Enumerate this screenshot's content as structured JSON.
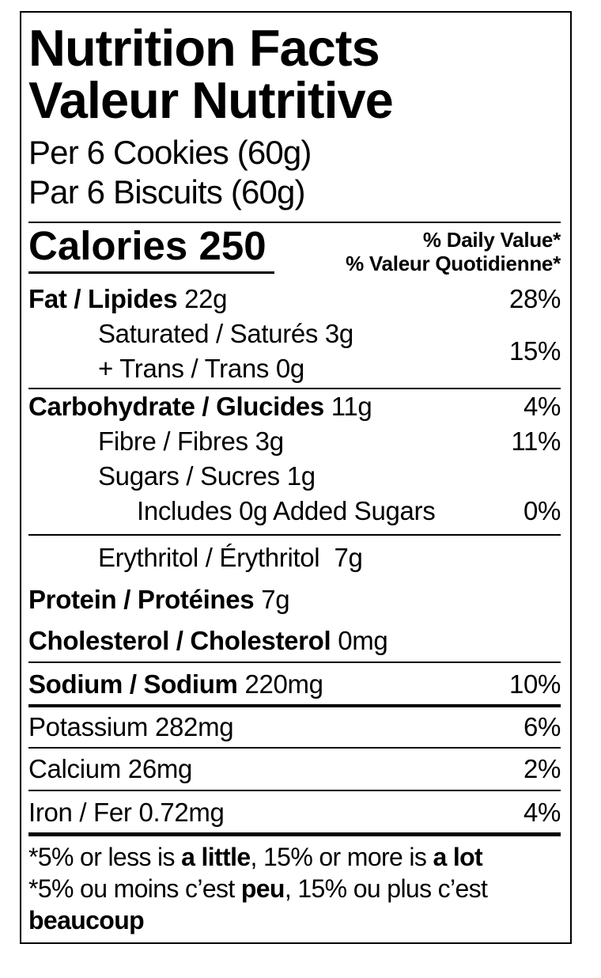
{
  "colors": {
    "text": "#000000",
    "background": "#ffffff",
    "border": "#000000"
  },
  "title": {
    "en": "Nutrition Facts",
    "fr": "Valeur Nutritive"
  },
  "serving": {
    "en": "Per 6 Cookies (60g)",
    "fr": "Par 6 Biscuits (60g)"
  },
  "calories": {
    "label": "Calories",
    "value": "250"
  },
  "dv_header": {
    "en": "% Daily Value*",
    "fr": "% Valeur Quotidienne*"
  },
  "nutrients": {
    "fat": {
      "name": "Fat / Lipides",
      "amount": "22g",
      "dv": "28%"
    },
    "sat_trans": {
      "line1": "Saturated / Saturés 3g",
      "line2": "+ Trans / Trans 0g",
      "dv": "15%"
    },
    "carbohydrate": {
      "name": "Carbohydrate / Glucides",
      "amount": "11g",
      "dv": "4%"
    },
    "fibre": {
      "name": "Fibre / Fibres",
      "amount": "3g",
      "dv": "11%"
    },
    "sugars": {
      "name": "Sugars / Sucres",
      "amount": "1g"
    },
    "added_sugars": {
      "name": "Includes 0g Added Sugars",
      "dv": "0%"
    },
    "erythritol": {
      "name": "Erythritol / Érythritol",
      "amount": "7g"
    },
    "protein": {
      "name": "Protein / Protéines",
      "amount": "7g"
    },
    "cholesterol": {
      "name": "Cholesterol / Cholesterol",
      "amount": "0mg"
    },
    "sodium": {
      "name": "Sodium / Sodium",
      "amount": "220mg",
      "dv": "10%"
    },
    "potassium": {
      "name": "Potassium",
      "amount": "282mg",
      "dv": "6%"
    },
    "calcium": {
      "name": "Calcium",
      "amount": "26mg",
      "dv": "2%"
    },
    "iron": {
      "name": "Iron / Fer",
      "amount": "0.72mg",
      "dv": "4%"
    }
  },
  "footnote": {
    "en": {
      "pre": "*5% or less is ",
      "bold1": "a little",
      "mid": ", 15% or more is ",
      "bold2": "a lot"
    },
    "fr": {
      "pre": "*5% ou moins c’est ",
      "bold1": "peu",
      "mid": ", 15% ou plus c’est"
    },
    "fr_last_line": "beaucoup"
  }
}
